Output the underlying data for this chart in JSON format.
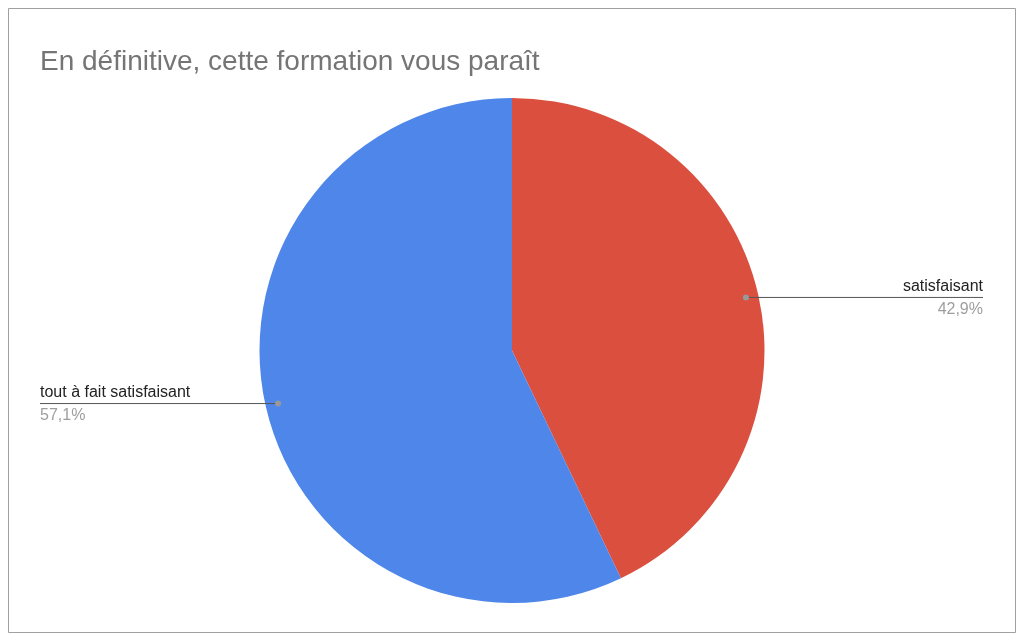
{
  "chart_data": {
    "type": "pie",
    "title": "En définitive, cette formation vous paraît",
    "categories": [
      "satisfaisant",
      "tout à fait satisfaisant"
    ],
    "values": [
      42.9,
      57.1
    ],
    "colors": [
      "#db4f3f",
      "#4e86ea"
    ],
    "value_labels": [
      "42,9%",
      "57,1%"
    ],
    "legend": false
  }
}
